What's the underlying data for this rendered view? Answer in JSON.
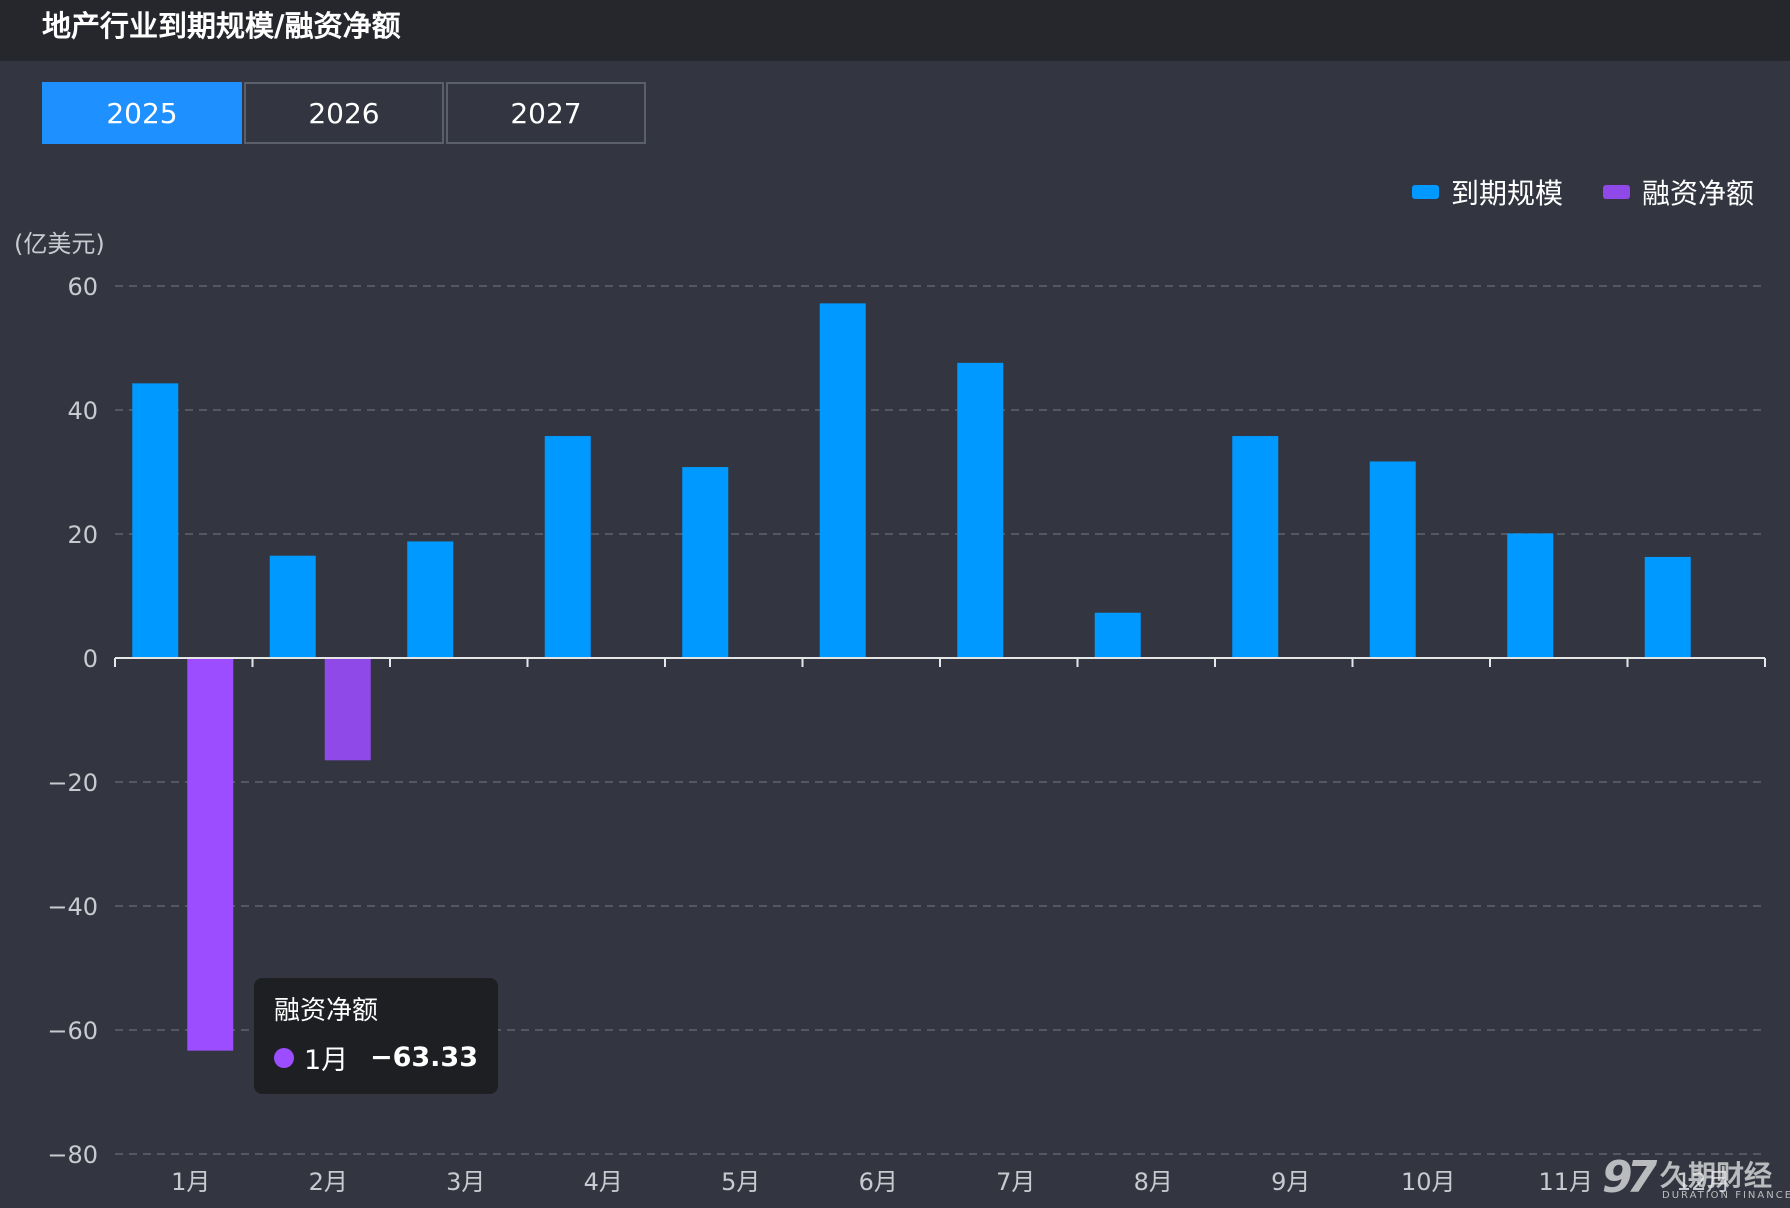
{
  "header": {
    "title": "地产行业到期规模/融资净额"
  },
  "year_tabs": [
    {
      "label": "2025",
      "active": true
    },
    {
      "label": "2026",
      "active": false
    },
    {
      "label": "2027",
      "active": false
    }
  ],
  "colors": {
    "maturity": "#0099ff",
    "net_financing": "#8e49e8",
    "net_financing_highlight": "#9b4dff",
    "background": "#333640",
    "title_bar": "#25272c",
    "active_tab": "#1e90ff"
  },
  "chart_data": {
    "type": "bar",
    "unit_label": "(亿美元)",
    "categories": [
      "1月",
      "2月",
      "3月",
      "4月",
      "5月",
      "6月",
      "7月",
      "8月",
      "9月",
      "10月",
      "11月",
      "12月"
    ],
    "series": [
      {
        "name": "到期规模",
        "values": [
          44.3,
          16.5,
          18.8,
          35.8,
          30.8,
          57.2,
          47.6,
          7.3,
          35.8,
          31.7,
          20.1,
          16.3
        ]
      },
      {
        "name": "融资净额",
        "values": [
          -63.33,
          -16.5,
          null,
          null,
          null,
          null,
          null,
          null,
          null,
          null,
          null,
          null
        ]
      }
    ],
    "ylim": [
      -80,
      60
    ],
    "yticks": [
      60,
      40,
      20,
      0,
      -20,
      -40,
      -60,
      -80
    ],
    "ytick_labels": [
      "60",
      "40",
      "20",
      "0",
      "−20",
      "−40",
      "−60",
      "−80"
    ],
    "grid": true,
    "legend_position": "top-right"
  },
  "tooltip": {
    "series_name": "融资净额",
    "category": "1月",
    "value": "−63.33"
  },
  "watermark": {
    "logo": "97",
    "text_cn": "久期财经",
    "text_en": "DURATION FINANCE"
  }
}
